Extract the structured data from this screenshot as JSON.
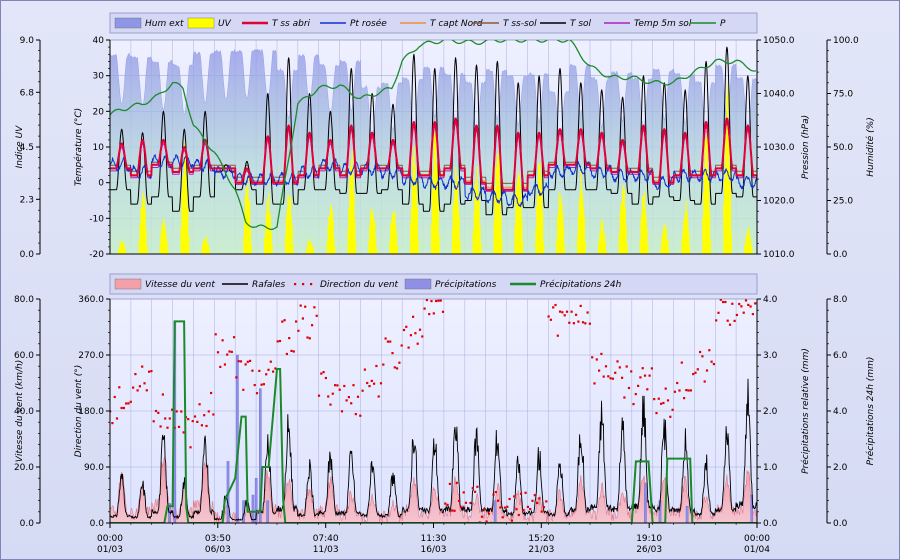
{
  "chart_data": [
    {
      "type": "line",
      "panel": "weather-top",
      "x_ticks": [
        {
          "time": "00:00",
          "date": "01/03"
        },
        {
          "time": "03:50",
          "date": "06/03"
        },
        {
          "time": "07:40",
          "date": "11/03"
        },
        {
          "time": "11:30",
          "date": "16/03"
        },
        {
          "time": "15:20",
          "date": "21/03"
        },
        {
          "time": "19:10",
          "date": "26/03"
        },
        {
          "time": "00:00",
          "date": "01/04"
        }
      ],
      "days": 31,
      "axes": {
        "uv": {
          "label": "Indice UV",
          "range": [
            0,
            9
          ],
          "ticks": [
            "0.0",
            "2.3",
            "4.5",
            "6.8",
            "9.0"
          ]
        },
        "temp": {
          "label": "Température (°C)",
          "range": [
            -20,
            40
          ],
          "ticks": [
            "-20",
            "-10",
            "0",
            "10",
            "20",
            "30",
            "40"
          ]
        },
        "pressure": {
          "label": "Pression (hPa)",
          "range": [
            1010,
            1050
          ],
          "ticks": [
            "1010.0",
            "1020.0",
            "1030.0",
            "1040.0",
            "1050.0"
          ]
        },
        "humidity": {
          "label": "Humidité (%)",
          "range": [
            0,
            100
          ],
          "ticks": [
            "0.0",
            "25.0",
            "50.0",
            "75.0",
            "100.0"
          ]
        }
      },
      "series": [
        {
          "name": "Hum ext",
          "axis": "humidity",
          "kind": "area",
          "color": "#8f96e6",
          "base": [
            93,
            92,
            90,
            88,
            94,
            95,
            95,
            95,
            86,
            93,
            88,
            90,
            78,
            80,
            82,
            87,
            84,
            80,
            86,
            83,
            84,
            76,
            88,
            82,
            85,
            82,
            86,
            84,
            80,
            88,
            82,
            85
          ],
          "amp": 12
        },
        {
          "name": "UV",
          "axis": "uv",
          "kind": "bars",
          "color": "#ffff00",
          "peaks": [
            0.6,
            2.8,
            1.6,
            5.1,
            0.8,
            0,
            3.4,
            2.7,
            2.8,
            0.7,
            2.2,
            4.6,
            2.2,
            2.3,
            4.6,
            5.6,
            3.9,
            3.9,
            5.4,
            4.6,
            4.2,
            2.8,
            3.8,
            1.5,
            3.2,
            2.8,
            1.4,
            2.3,
            5.3,
            7.6,
            1.2
          ]
        },
        {
          "name": "T ss abri",
          "axis": "temp",
          "kind": "line",
          "color": "#e0003a",
          "tmin": [
            4,
            2,
            5,
            3,
            4,
            4,
            0,
            0,
            0,
            2,
            4,
            2,
            4,
            4,
            2,
            2,
            4,
            0,
            -2,
            -2,
            2,
            5,
            5,
            4,
            3,
            3,
            0,
            2,
            2,
            4,
            2
          ],
          "tmax": [
            11,
            12,
            12,
            10,
            12,
            4,
            4,
            13,
            16,
            14,
            12,
            16,
            14,
            12,
            17,
            17,
            18,
            16,
            16,
            14,
            14,
            15,
            15,
            14,
            12,
            16,
            15,
            14,
            17,
            18,
            16
          ]
        },
        {
          "name": "Pt rosée",
          "axis": "temp",
          "kind": "line",
          "color": "#1030d0",
          "base": [
            5,
            3,
            6,
            6,
            5,
            3,
            1,
            1,
            1,
            3,
            5,
            4,
            4,
            3,
            1,
            0,
            0,
            -3,
            -4,
            -5,
            -2,
            3,
            4,
            3,
            2,
            2,
            0,
            2,
            2,
            2,
            0
          ]
        },
        {
          "name": "T capt Nord",
          "axis": "temp",
          "kind": "line",
          "color": "#f08a40"
        },
        {
          "name": "T ss-sol",
          "axis": "temp",
          "kind": "line",
          "color": "#8a5a3a"
        },
        {
          "name": "T sol",
          "axis": "temp",
          "kind": "line",
          "color": "#000000",
          "tmin": [
            -2,
            -6,
            -4,
            -8,
            -4,
            3,
            -2,
            -6,
            -6,
            -2,
            -2,
            -3,
            -3,
            -2,
            -6,
            -8,
            -6,
            -5,
            -9,
            -7,
            -7,
            -2,
            -2,
            -2,
            -3,
            -6,
            -4,
            -5,
            -6,
            -3,
            -4
          ],
          "tmax": [
            15,
            14,
            20,
            15,
            20,
            5,
            6,
            25,
            35,
            25,
            20,
            32,
            25,
            22,
            36,
            32,
            35,
            33,
            34,
            28,
            30,
            32,
            28,
            26,
            24,
            30,
            28,
            26,
            34,
            38,
            30
          ]
        },
        {
          "name": "Temp 5m sol",
          "axis": "temp",
          "kind": "line",
          "color": "#b020c0"
        },
        {
          "name": "P",
          "axis": "pressure",
          "kind": "line",
          "color": "#1b8a2a",
          "points": [
            [
              0,
              1036
            ],
            [
              0.5,
              1037
            ],
            [
              1.5,
              1038
            ],
            [
              2.3,
              1039.5
            ],
            [
              3,
              1042
            ],
            [
              3.5,
              1041
            ],
            [
              4,
              1034
            ],
            [
              5,
              1029
            ],
            [
              6,
              1022
            ],
            [
              6.5,
              1016
            ],
            [
              7,
              1015
            ],
            [
              8,
              1015
            ],
            [
              9,
              1038
            ],
            [
              10,
              1041
            ],
            [
              11,
              1041.5
            ],
            [
              12,
              1039
            ],
            [
              13.5,
              1041
            ],
            [
              14,
              1046
            ],
            [
              14.8,
              1049
            ],
            [
              16,
              1050
            ],
            [
              17.5,
              1049.5
            ],
            [
              18.5,
              1050
            ],
            [
              20,
              1050
            ],
            [
              21.5,
              1050
            ],
            [
              22,
              1050
            ],
            [
              23,
              1045
            ],
            [
              24,
              1043
            ],
            [
              25,
              1043
            ],
            [
              26,
              1042
            ],
            [
              27,
              1042
            ],
            [
              28,
              1044
            ],
            [
              29,
              1046
            ],
            [
              30,
              1046
            ],
            [
              30.6,
              1045
            ],
            [
              31,
              1044
            ]
          ]
        }
      ]
    },
    {
      "type": "line",
      "panel": "wind-bottom",
      "x_ticks": [
        {
          "time": "00:00",
          "date": "01/03"
        },
        {
          "time": "03:50",
          "date": "06/03"
        },
        {
          "time": "07:40",
          "date": "11/03"
        },
        {
          "time": "11:30",
          "date": "16/03"
        },
        {
          "time": "15:20",
          "date": "21/03"
        },
        {
          "time": "19:10",
          "date": "26/03"
        },
        {
          "time": "00:00",
          "date": "01/04"
        }
      ],
      "days": 31,
      "axes": {
        "speed": {
          "label": "Vitesse du vent (km/h)",
          "range": [
            0,
            80
          ],
          "ticks": [
            "0.0",
            "20.0",
            "40.0",
            "60.0",
            "80.0"
          ]
        },
        "direction": {
          "label": "Direction du vent (°)",
          "range": [
            0,
            360
          ],
          "ticks": [
            "0.0",
            "90.0",
            "180.0",
            "270.0",
            "360.0"
          ]
        },
        "precip": {
          "label": "Précipitations relative  (mm)",
          "range": [
            0,
            4
          ],
          "ticks": [
            "0.0",
            "1.0",
            "2.0",
            "3.0",
            "4.0"
          ]
        },
        "precip24": {
          "label": "Précipitations 24h (mm)",
          "range": [
            0,
            8
          ],
          "ticks": [
            "0.0",
            "2.0",
            "4.0",
            "6.0",
            "8.0"
          ]
        }
      },
      "series": [
        {
          "name": "Vitesse du vent",
          "axis": "speed",
          "kind": "area",
          "color": "#f4a0a8",
          "base": [
            13,
            10,
            18,
            10,
            18,
            4,
            4,
            14,
            12,
            10,
            12,
            8,
            7,
            6,
            12,
            10,
            12,
            8,
            10,
            8,
            7,
            8,
            12,
            10,
            9,
            14,
            13,
            12,
            8,
            12,
            14
          ]
        },
        {
          "name": "Rafales",
          "axis": "speed",
          "kind": "line",
          "color": "#000000",
          "peaks": [
            17,
            14,
            30,
            15,
            28,
            10,
            8,
            28,
            36,
            20,
            25,
            25,
            20,
            18,
            33,
            30,
            35,
            33,
            32,
            22,
            25,
            22,
            33,
            40,
            35,
            43,
            35,
            30,
            22,
            32,
            45
          ]
        },
        {
          "name": "Direction du vent",
          "axis": "direction",
          "kind": "points",
          "color": "#e00000",
          "base": [
            190,
            240,
            180,
            150,
            180,
            280,
            240,
            230,
            300,
            320,
            220,
            200,
            230,
            270,
            310,
            360,
            40,
            30,
            20,
            20,
            30,
            330,
            340,
            250,
            230,
            220,
            200,
            230,
            250,
            340,
            355
          ]
        },
        {
          "name": "Précipitations",
          "axis": "precip",
          "kind": "bars",
          "color": "#8f8fe6",
          "events": [
            [
              2.8,
              0.35
            ],
            [
              3.05,
              3.6
            ],
            [
              5.6,
              1.1
            ],
            [
              6.05,
              3.0
            ],
            [
              6.35,
              0.4
            ],
            [
              6.8,
              0.5
            ],
            [
              6.95,
              0.8
            ],
            [
              7.15,
              2.4
            ],
            [
              7.5,
              0.4
            ],
            [
              18.4,
              0.4
            ],
            [
              25.6,
              0.7
            ],
            [
              26.3,
              0.4
            ],
            [
              27.6,
              0.3
            ],
            [
              30.7,
              0.5
            ]
          ]
        },
        {
          "name": "Précipitations 24h",
          "axis": "precip24",
          "kind": "line",
          "color": "#1b8a2a",
          "points": [
            [
              0,
              0
            ],
            [
              2.5,
              0
            ],
            [
              2.6,
              0
            ],
            [
              2.75,
              0.6
            ],
            [
              3.0,
              0.6
            ],
            [
              3.1,
              7.2
            ],
            [
              3.55,
              7.2
            ],
            [
              3.65,
              0.6
            ],
            [
              3.75,
              0
            ],
            [
              5.4,
              0
            ],
            [
              5.5,
              0.8
            ],
            [
              6.0,
              1.6
            ],
            [
              6.3,
              3.8
            ],
            [
              6.5,
              3.8
            ],
            [
              6.6,
              0.4
            ],
            [
              7.2,
              0.4
            ],
            [
              7.3,
              2.0
            ],
            [
              7.6,
              2.0
            ],
            [
              8.0,
              5.5
            ],
            [
              8.15,
              5.5
            ],
            [
              8.3,
              0.8
            ],
            [
              8.4,
              0
            ],
            [
              25.0,
              0
            ],
            [
              25.2,
              2.2
            ],
            [
              25.8,
              2.2
            ],
            [
              26.0,
              0
            ],
            [
              26.6,
              0
            ],
            [
              26.7,
              2.3
            ],
            [
              27.8,
              2.3
            ],
            [
              27.9,
              0
            ],
            [
              31,
              0
            ]
          ]
        }
      ]
    }
  ]
}
